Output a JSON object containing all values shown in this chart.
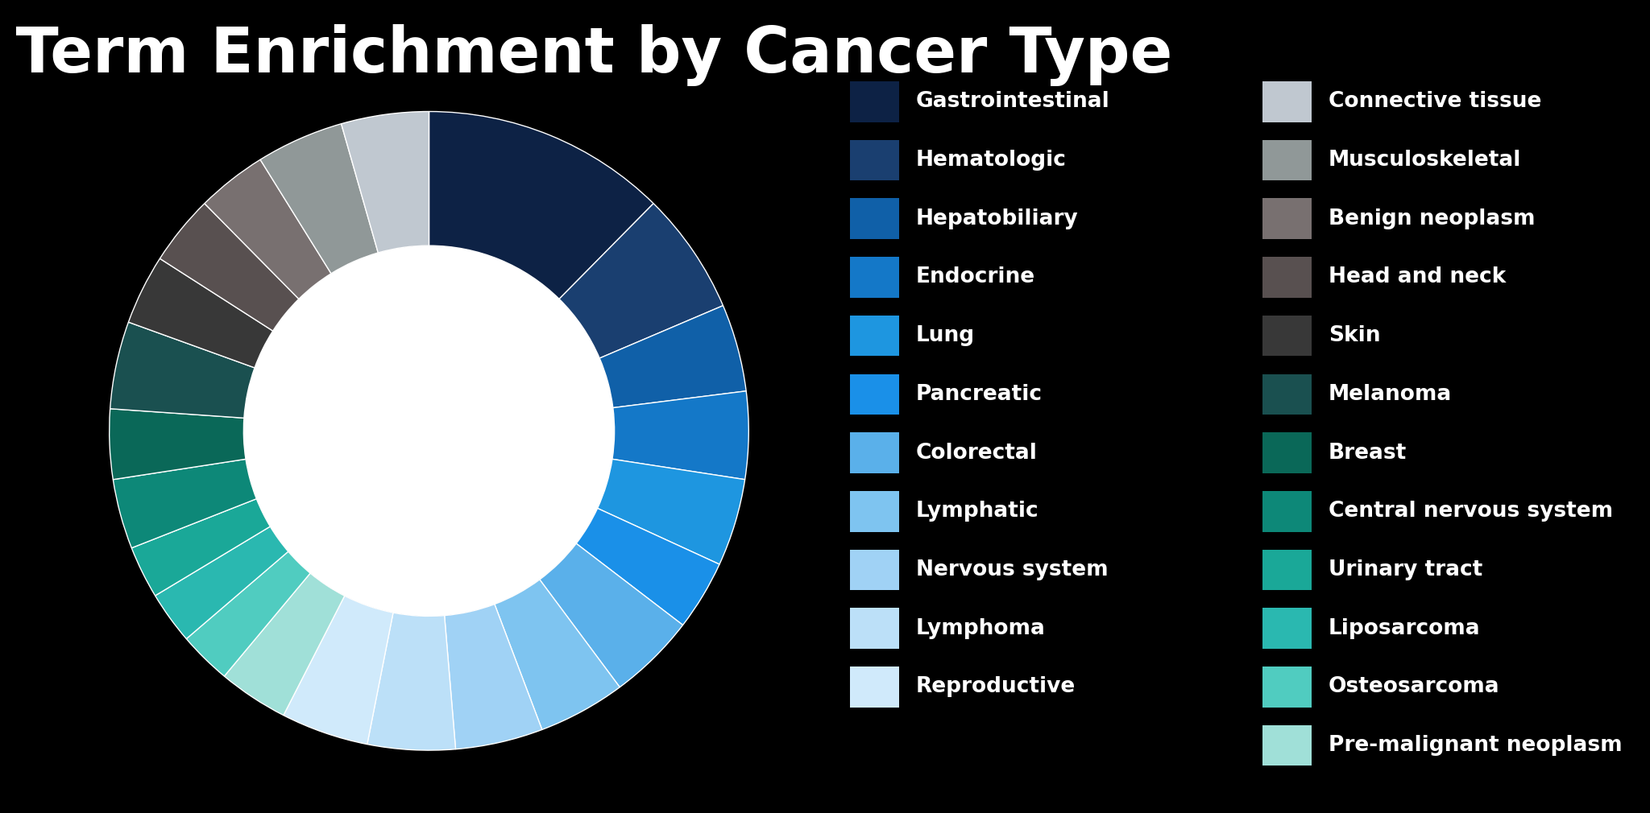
{
  "title": "Disease Term Enrichment by Cancer Type",
  "background_color": "#000000",
  "title_color": "#ffffff",
  "title_fontsize": 56,
  "categories_left": [
    "Gastrointestinal",
    "Hematologic",
    "Hepatobiliary",
    "Endocrine",
    "Lung",
    "Pancreatic",
    "Colorectal",
    "Lymphatic",
    "Nervous system",
    "Lymphoma",
    "Reproductive"
  ],
  "colors_left": [
    "#0d2245",
    "#1a3f70",
    "#1060a8",
    "#1478c8",
    "#1e96e0",
    "#1a90e8",
    "#5ab0ea",
    "#7ec4f0",
    "#a0d2f5",
    "#bce0f8",
    "#d0eafb"
  ],
  "categories_right": [
    "Connective tissue",
    "Musculoskeletal",
    "Benign neoplasm",
    "Head and neck",
    "Skin",
    "Melanoma",
    "Breast",
    "Central nervous system",
    "Urinary tract",
    "Liposarcoma",
    "Osteosarcoma",
    "Pre-malignant neoplasm"
  ],
  "colors_right": [
    "#c0c8d0",
    "#909898",
    "#787070",
    "#585050",
    "#383838",
    "#1a5050",
    "#0a6858",
    "#0d8878",
    "#1aa898",
    "#2ab8b0",
    "#50ccc0",
    "#a0e0d8"
  ],
  "pie_colors": [
    "#0d2245",
    "#1a3f70",
    "#1060a8",
    "#1478c8",
    "#1e96e0",
    "#1a90e8",
    "#5ab0ea",
    "#7ec4f0",
    "#a0d2f5",
    "#bce0f8",
    "#d0eafb",
    "#a0e0d8",
    "#50ccc0",
    "#2ab8b0",
    "#1aa898",
    "#0d8878",
    "#0a6858",
    "#1a5050",
    "#383838",
    "#585050",
    "#787070",
    "#909898",
    "#c0c8d0"
  ],
  "sizes": [
    14,
    7,
    5,
    5,
    5,
    4,
    5,
    5,
    5,
    5,
    5,
    4,
    3,
    3,
    3,
    4,
    4,
    5,
    4,
    4,
    4,
    5,
    5
  ],
  "legend_text_color": "#ffffff",
  "legend_fontsize": 19
}
